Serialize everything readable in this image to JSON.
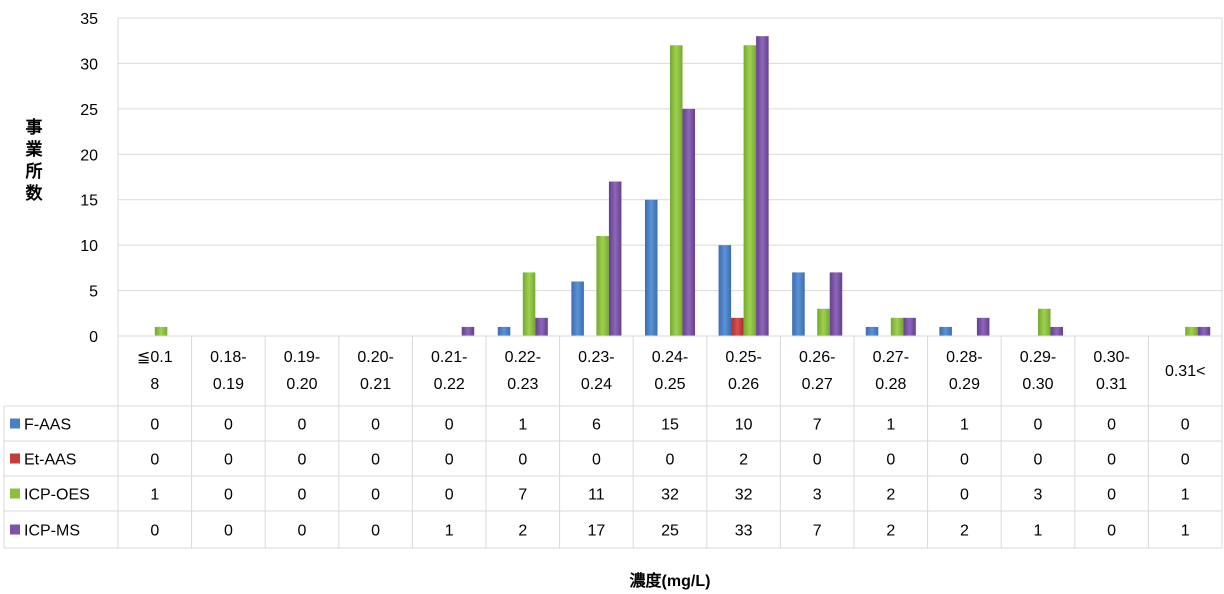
{
  "chart_data": {
    "type": "bar",
    "ylabel": "事業所数",
    "xlabel": "濃度(mg/L)",
    "ylim": [
      0,
      35
    ],
    "yticks": [
      0,
      5,
      10,
      15,
      20,
      25,
      30,
      35
    ],
    "grid": true,
    "legend": "data-table",
    "categories": [
      [
        "≦0.1",
        "8"
      ],
      [
        "0.18-",
        "0.19"
      ],
      [
        "0.19-",
        "0.20"
      ],
      [
        "0.20-",
        "0.21"
      ],
      [
        "0.21-",
        "0.22"
      ],
      [
        "0.22-",
        "0.23"
      ],
      [
        "0.23-",
        "0.24"
      ],
      [
        "0.24-",
        "0.25"
      ],
      [
        "0.25-",
        "0.26"
      ],
      [
        "0.26-",
        "0.27"
      ],
      [
        "0.27-",
        "0.28"
      ],
      [
        "0.28-",
        "0.29"
      ],
      [
        "0.29-",
        "0.30"
      ],
      [
        "0.30-",
        "0.31"
      ],
      [
        "0.31<"
      ]
    ],
    "series": [
      {
        "name": "F-AAS",
        "color": "#4a7fc4",
        "values": [
          0,
          0,
          0,
          0,
          0,
          1,
          6,
          15,
          10,
          7,
          1,
          1,
          0,
          0,
          0
        ]
      },
      {
        "name": "Et-AAS",
        "color": "#c63c3c",
        "values": [
          0,
          0,
          0,
          0,
          0,
          0,
          0,
          0,
          2,
          0,
          0,
          0,
          0,
          0,
          0
        ]
      },
      {
        "name": "ICP-OES",
        "color": "#8cbf3f",
        "values": [
          1,
          0,
          0,
          0,
          0,
          7,
          11,
          32,
          32,
          3,
          2,
          0,
          3,
          0,
          1
        ]
      },
      {
        "name": "ICP-MS",
        "color": "#7a52a6",
        "values": [
          0,
          0,
          0,
          0,
          1,
          2,
          17,
          25,
          33,
          7,
          2,
          2,
          1,
          0,
          1
        ]
      }
    ]
  }
}
